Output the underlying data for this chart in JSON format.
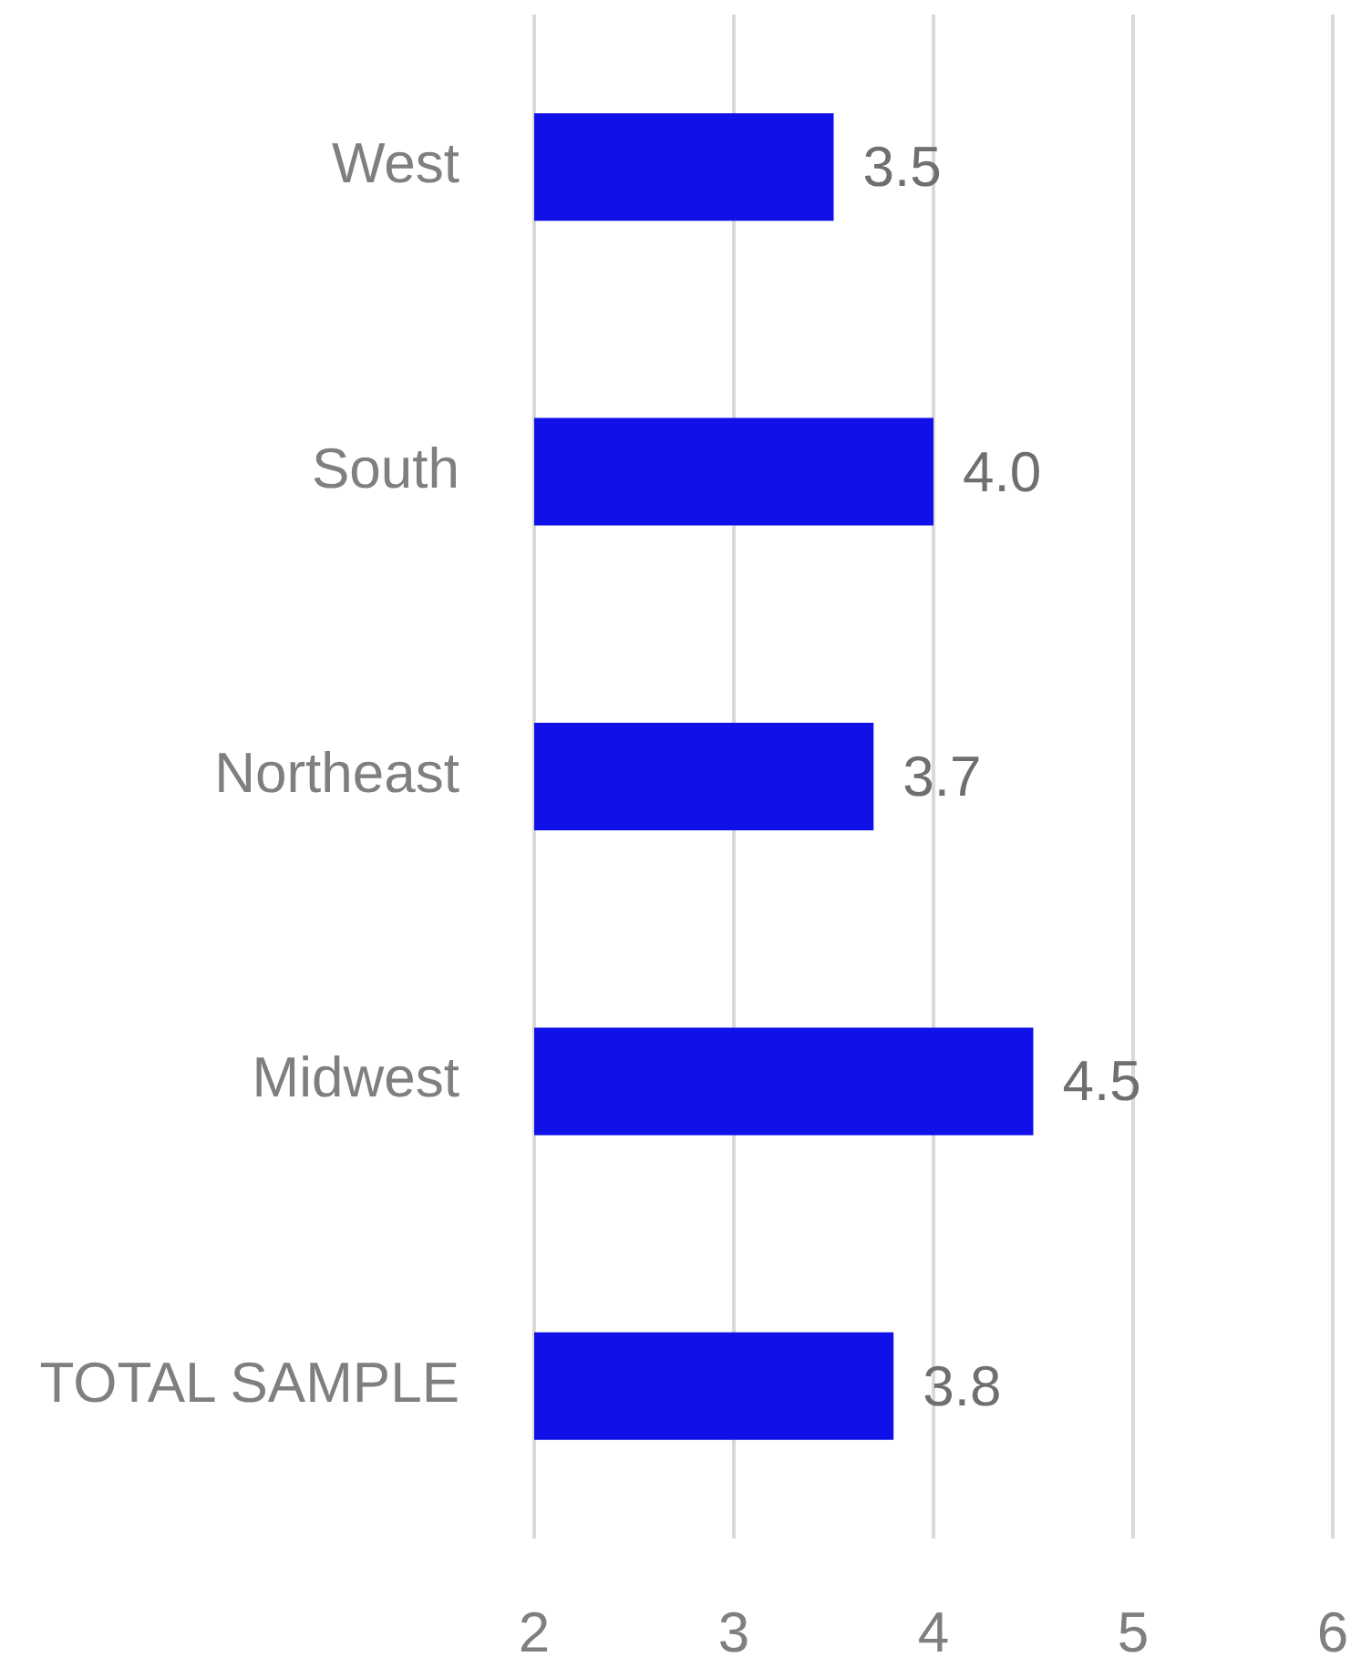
{
  "chart_data": {
    "type": "bar",
    "orientation": "horizontal",
    "categories": [
      "West",
      "South",
      "Northeast",
      "Midwest",
      "TOTAL SAMPLE"
    ],
    "values": [
      3.5,
      4.0,
      3.7,
      4.5,
      3.8
    ],
    "value_labels": [
      "3.5",
      "4.0",
      "3.7",
      "4.5",
      "3.8"
    ],
    "color": "#1010e8",
    "xlim": [
      2,
      6
    ],
    "xticks": [
      2,
      3,
      4,
      5,
      6
    ],
    "grid": "x"
  }
}
